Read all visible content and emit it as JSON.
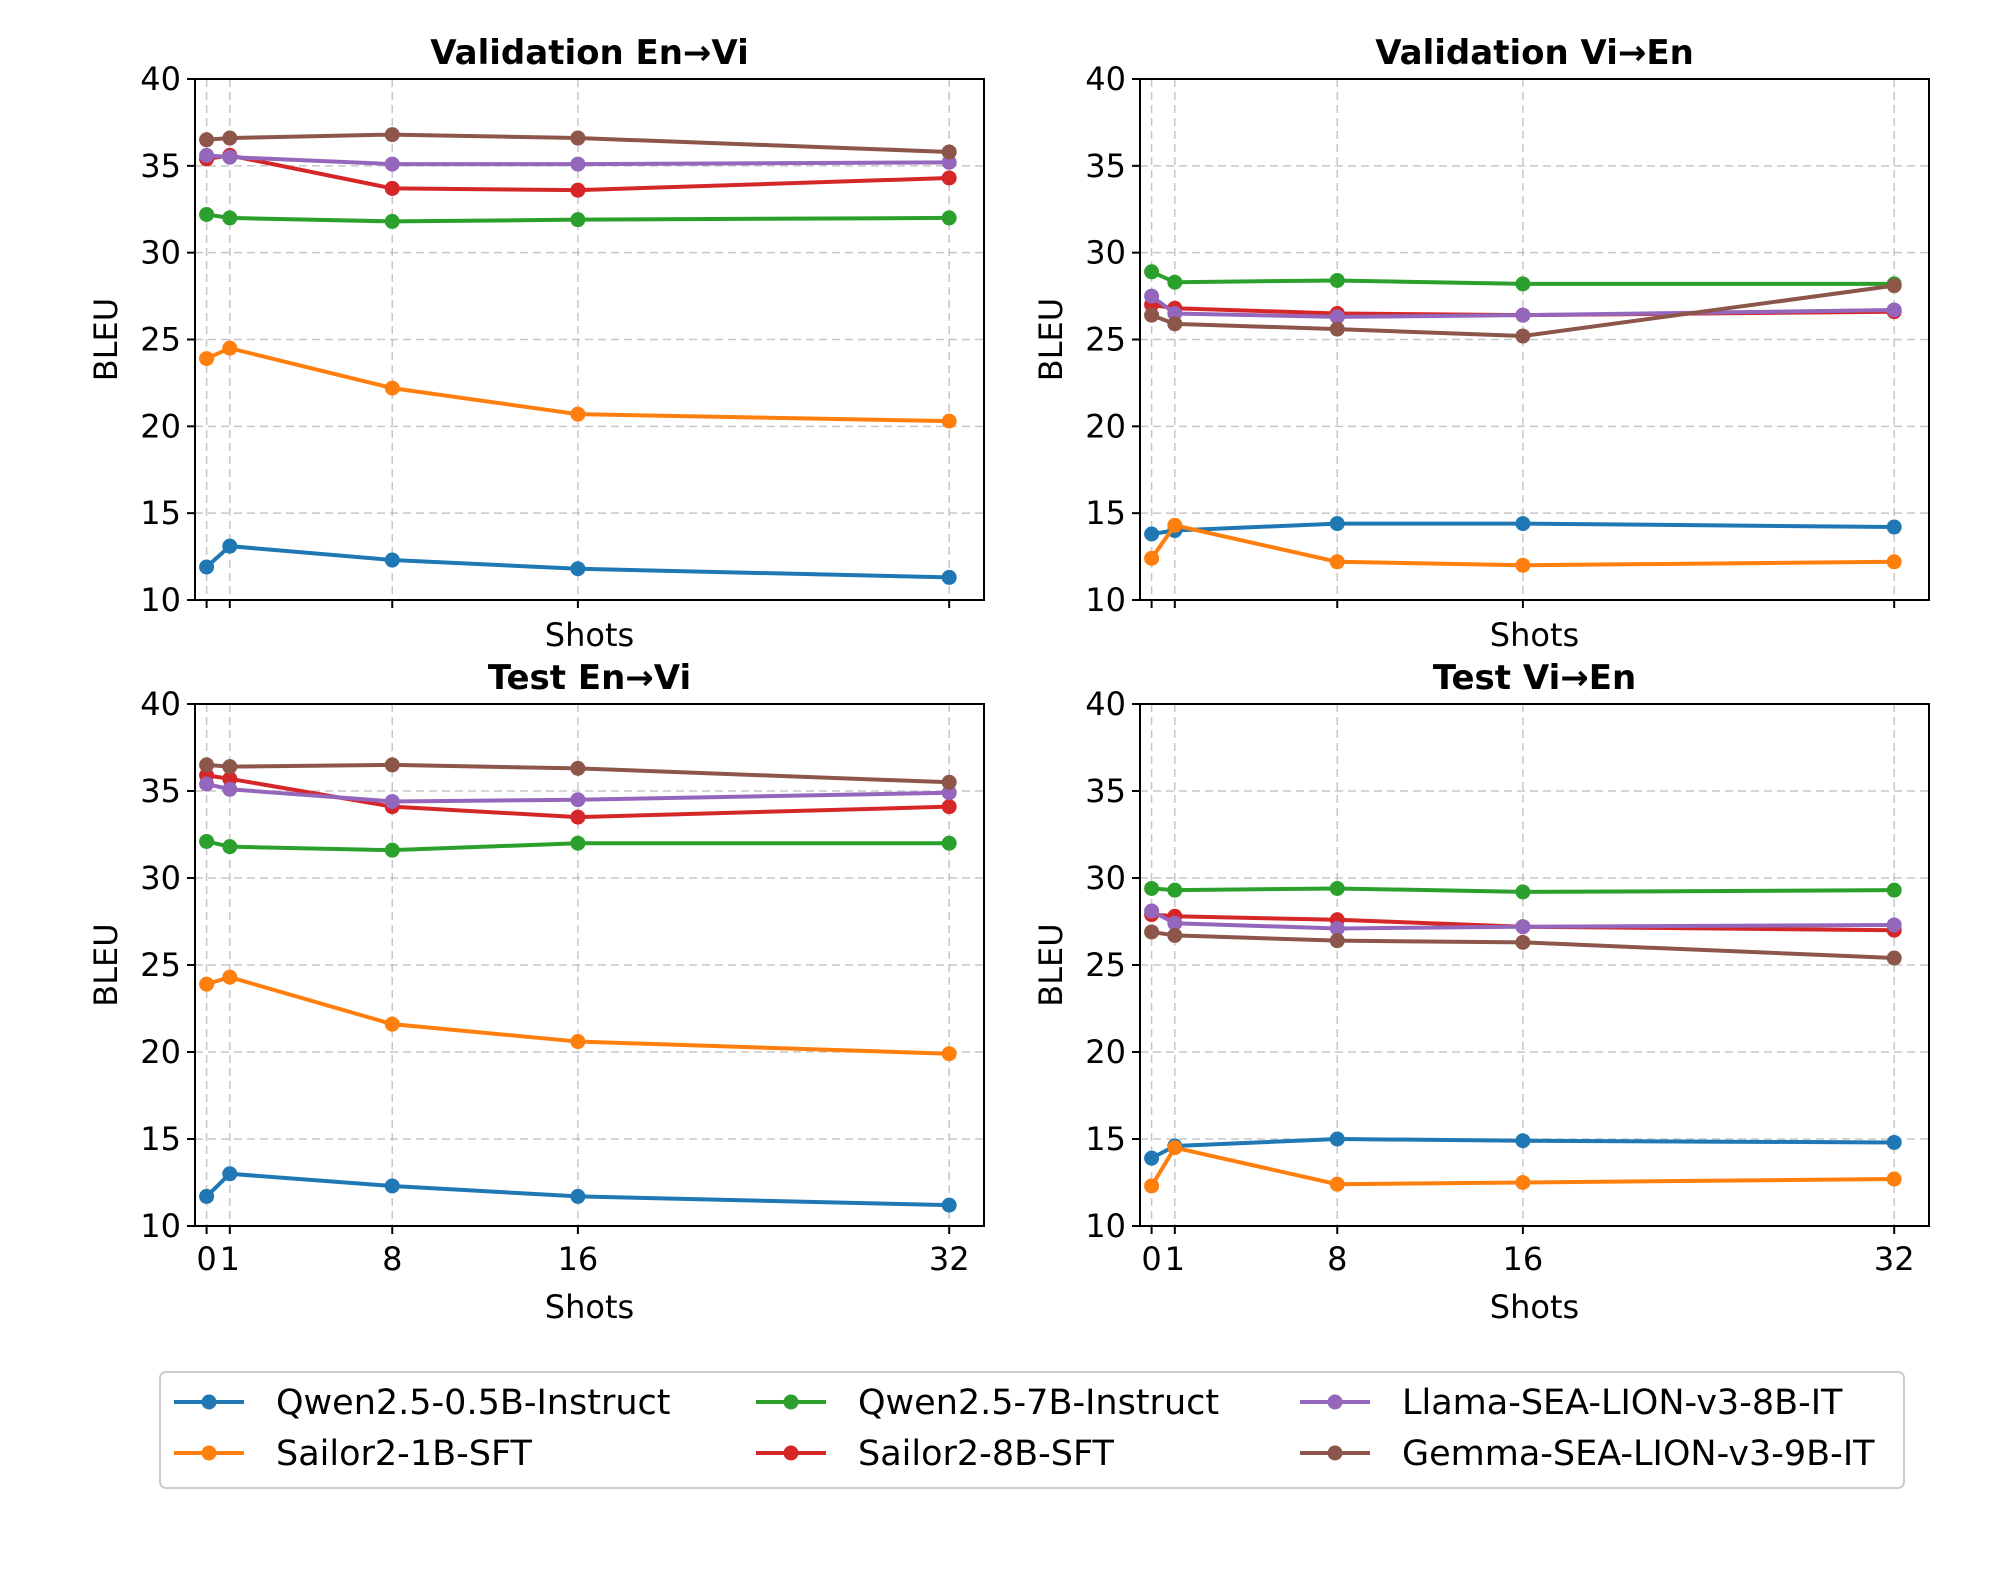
{
  "colors": {
    "Qwen2.5-0.5B-Instruct": "#1f77b4",
    "Sailor2-1B-SFT": "#ff7f0e",
    "Qwen2.5-7B-Instruct": "#2ca02c",
    "Sailor2-8B-SFT": "#d62728",
    "Llama-SEA-LION-v3-8B-IT": "#9467bd",
    "Gemma-SEA-LION-v3-9B-IT": "#8c564b"
  },
  "legend": {
    "entries": [
      "Qwen2.5-0.5B-Instruct",
      "Sailor2-1B-SFT",
      "Qwen2.5-7B-Instruct",
      "Sailor2-8B-SFT",
      "Llama-SEA-LION-v3-8B-IT",
      "Gemma-SEA-LION-v3-9B-IT"
    ]
  },
  "chart_data": [
    {
      "type": "line",
      "title": "Validation En→Vi",
      "xlabel": "Shots",
      "ylabel": "BLEU",
      "x": [
        0,
        1,
        8,
        16,
        32
      ],
      "xticks": [
        "",
        "",
        "",
        "",
        ""
      ],
      "ylim": [
        10,
        40
      ],
      "yticks": [
        10,
        15,
        20,
        25,
        30,
        35,
        40
      ],
      "grid": true,
      "series": [
        {
          "name": "Qwen2.5-0.5B-Instruct",
          "values": [
            11.9,
            13.1,
            12.3,
            11.8,
            11.3
          ]
        },
        {
          "name": "Sailor2-1B-SFT",
          "values": [
            23.9,
            24.5,
            22.2,
            20.7,
            20.3
          ]
        },
        {
          "name": "Qwen2.5-7B-Instruct",
          "values": [
            32.2,
            32.0,
            31.8,
            31.9,
            32.0
          ]
        },
        {
          "name": "Sailor2-8B-SFT",
          "values": [
            35.4,
            35.6,
            33.7,
            33.6,
            34.3
          ]
        },
        {
          "name": "Llama-SEA-LION-v3-8B-IT",
          "values": [
            35.6,
            35.5,
            35.1,
            35.1,
            35.2
          ]
        },
        {
          "name": "Gemma-SEA-LION-v3-9B-IT",
          "values": [
            36.5,
            36.6,
            36.8,
            36.6,
            35.8
          ]
        }
      ]
    },
    {
      "type": "line",
      "title": "Validation Vi→En",
      "xlabel": "Shots",
      "ylabel": "BLEU",
      "x": [
        0,
        1,
        8,
        16,
        32
      ],
      "xticks": [
        "",
        "",
        "",
        "",
        ""
      ],
      "ylim": [
        10,
        40
      ],
      "yticks": [
        10,
        15,
        20,
        25,
        30,
        35,
        40
      ],
      "grid": true,
      "series": [
        {
          "name": "Qwen2.5-0.5B-Instruct",
          "values": [
            13.8,
            14.0,
            14.4,
            14.4,
            14.2
          ]
        },
        {
          "name": "Sailor2-1B-SFT",
          "values": [
            12.4,
            14.3,
            12.2,
            12.0,
            12.2
          ]
        },
        {
          "name": "Qwen2.5-7B-Instruct",
          "values": [
            28.9,
            28.3,
            28.4,
            28.2,
            28.2
          ]
        },
        {
          "name": "Sailor2-8B-SFT",
          "values": [
            27.0,
            26.8,
            26.5,
            26.4,
            26.6
          ]
        },
        {
          "name": "Llama-SEA-LION-v3-8B-IT",
          "values": [
            27.5,
            26.5,
            26.3,
            26.4,
            26.7
          ]
        },
        {
          "name": "Gemma-SEA-LION-v3-9B-IT",
          "values": [
            26.4,
            25.9,
            25.6,
            25.2,
            28.1
          ]
        }
      ]
    },
    {
      "type": "line",
      "title": "Test En→Vi",
      "xlabel": "Shots",
      "ylabel": "BLEU",
      "x": [
        0,
        1,
        8,
        16,
        32
      ],
      "xticks": [
        "0",
        "1",
        "8",
        "16",
        "32"
      ],
      "ylim": [
        10,
        40
      ],
      "yticks": [
        10,
        15,
        20,
        25,
        30,
        35,
        40
      ],
      "grid": true,
      "series": [
        {
          "name": "Qwen2.5-0.5B-Instruct",
          "values": [
            11.7,
            13.0,
            12.3,
            11.7,
            11.2
          ]
        },
        {
          "name": "Sailor2-1B-SFT",
          "values": [
            23.9,
            24.3,
            21.6,
            20.6,
            19.9
          ]
        },
        {
          "name": "Qwen2.5-7B-Instruct",
          "values": [
            32.1,
            31.8,
            31.6,
            32.0,
            32.0
          ]
        },
        {
          "name": "Sailor2-8B-SFT",
          "values": [
            35.9,
            35.7,
            34.1,
            33.5,
            34.1
          ]
        },
        {
          "name": "Llama-SEA-LION-v3-8B-IT",
          "values": [
            35.4,
            35.1,
            34.4,
            34.5,
            34.9
          ]
        },
        {
          "name": "Gemma-SEA-LION-v3-9B-IT",
          "values": [
            36.5,
            36.4,
            36.5,
            36.3,
            35.5
          ]
        }
      ]
    },
    {
      "type": "line",
      "title": "Test Vi→En",
      "xlabel": "Shots",
      "ylabel": "BLEU",
      "x": [
        0,
        1,
        8,
        16,
        32
      ],
      "xticks": [
        "0",
        "1",
        "8",
        "16",
        "32"
      ],
      "ylim": [
        10,
        40
      ],
      "yticks": [
        10,
        15,
        20,
        25,
        30,
        35,
        40
      ],
      "grid": true,
      "series": [
        {
          "name": "Qwen2.5-0.5B-Instruct",
          "values": [
            13.9,
            14.6,
            15.0,
            14.9,
            14.8
          ]
        },
        {
          "name": "Sailor2-1B-SFT",
          "values": [
            12.3,
            14.5,
            12.4,
            12.5,
            12.7
          ]
        },
        {
          "name": "Qwen2.5-7B-Instruct",
          "values": [
            29.4,
            29.3,
            29.4,
            29.2,
            29.3
          ]
        },
        {
          "name": "Sailor2-8B-SFT",
          "values": [
            27.9,
            27.8,
            27.6,
            27.2,
            27.0
          ]
        },
        {
          "name": "Llama-SEA-LION-v3-8B-IT",
          "values": [
            28.1,
            27.4,
            27.1,
            27.2,
            27.3
          ]
        },
        {
          "name": "Gemma-SEA-LION-v3-9B-IT",
          "values": [
            26.9,
            26.7,
            26.4,
            26.3,
            25.4
          ]
        }
      ]
    }
  ]
}
